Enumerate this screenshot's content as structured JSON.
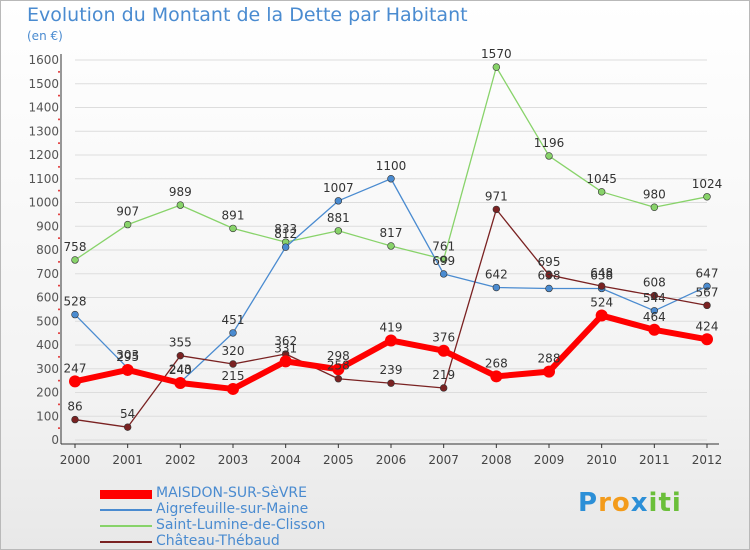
{
  "title": "Evolution du Montant de la Dette par Habitant",
  "unit": "(en €)",
  "logo": {
    "letters": [
      "P",
      "r",
      "o",
      "x",
      "i",
      "t",
      "i"
    ],
    "colors": [
      "#2c8fd7",
      "#f39b1b",
      "#f39b1b",
      "#2c8fd7",
      "#6bbf3a",
      "#6bbf3a",
      "#6bbf3a"
    ]
  },
  "chart_data": {
    "type": "line",
    "title": "Evolution du Montant de la Dette par Habitant",
    "ylabel": "(en €)",
    "xlabel": "",
    "categories": [
      "2000",
      "2001",
      "2002",
      "2003",
      "2004",
      "2005",
      "2006",
      "2007",
      "2008",
      "2009",
      "2010",
      "2011",
      "2012"
    ],
    "ylim": [
      0,
      1600
    ],
    "yticks": [
      0,
      100,
      200,
      300,
      400,
      500,
      600,
      700,
      800,
      900,
      1000,
      1100,
      1200,
      1300,
      1400,
      1500,
      1600
    ],
    "grid": true,
    "legend": "bottom-left",
    "series": [
      {
        "name": "MAISDON-SUR-SèVRE",
        "color": "#ff0000",
        "width": 6,
        "values": [
          247,
          295,
          240,
          215,
          331,
          298,
          419,
          376,
          268,
          288,
          524,
          464,
          424
        ]
      },
      {
        "name": "Aigrefeuille-sur-Maine",
        "color": "#4a8bd0",
        "width": 1.3,
        "values": [
          528,
          303,
          243,
          451,
          812,
          1007,
          1100,
          699,
          642,
          638,
          638,
          544,
          647
        ]
      },
      {
        "name": "Saint-Lumine-de-Clisson",
        "color": "#88d36a",
        "width": 1.3,
        "values": [
          758,
          907,
          989,
          891,
          833,
          881,
          817,
          761,
          1570,
          1196,
          1045,
          980,
          1024
        ]
      },
      {
        "name": "Château-Thébaud",
        "color": "#7a2222",
        "width": 1.3,
        "values": [
          86,
          54,
          355,
          320,
          362,
          258,
          239,
          219,
          971,
          695,
          648,
          608,
          567
        ]
      }
    ]
  }
}
